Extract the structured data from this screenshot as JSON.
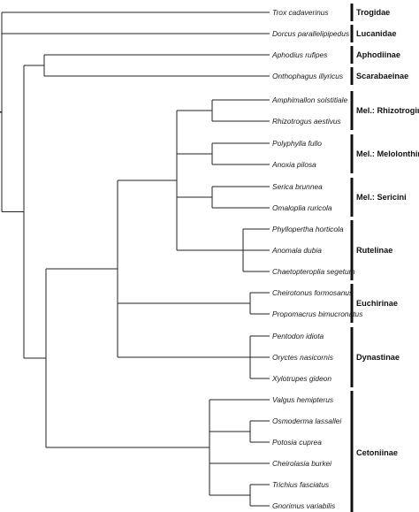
{
  "taxa": [
    "Trox cadaverinus",
    "Dorcus parallelipipedus",
    "Aphodius rufipes",
    "Onthophagus illyricus",
    "Amphimallon solstitiale",
    "Rhizotrogus aestivus",
    "Polyphylla fullo",
    "Anoxia pilosa",
    "Serica brunnea",
    "Omaloplia ruricola",
    "Phyllopertha horticola",
    "Anomala dubia",
    "Chaetopteroplia segetum",
    "Cheirotonus formosanus",
    "Propomacrus bimucronatus",
    "Pentodon idiota",
    "Oryctes nasicornis",
    "Xylotrupes gideon",
    "Valgus hemipterus",
    "Osmoderma lassallei",
    "Potosia cuprea",
    "Cheirolasia burkei",
    "Trichius fasciatus",
    "Gnorimus variabilis"
  ],
  "groups": [
    {
      "name": "Trogidae",
      "first": 0,
      "last": 0
    },
    {
      "name": "Lucanidae",
      "first": 1,
      "last": 1
    },
    {
      "name": "Aphodiinae",
      "first": 2,
      "last": 2
    },
    {
      "name": "Scarabaeinae",
      "first": 3,
      "last": 3
    },
    {
      "name": "Mel.: Rhizotrogini",
      "first": 4,
      "last": 5
    },
    {
      "name": "Mel.: Melolonthini",
      "first": 6,
      "last": 7
    },
    {
      "name": "Mel.: Sericini",
      "first": 8,
      "last": 9
    },
    {
      "name": "Rutelinae",
      "first": 10,
      "last": 12
    },
    {
      "name": "Euchirinae",
      "first": 13,
      "last": 14
    },
    {
      "name": "Dynastinae",
      "first": 15,
      "last": 17
    },
    {
      "name": "Cetoniinae",
      "first": 18,
      "last": 23
    }
  ],
  "style": {
    "line_color": "#222222",
    "bracket_color": "#111111"
  }
}
